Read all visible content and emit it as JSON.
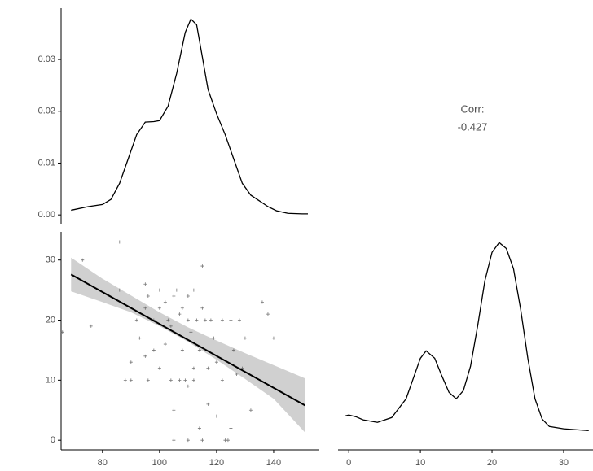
{
  "chart_data": [
    {
      "type": "line",
      "x": [
        69,
        75,
        80,
        83,
        86,
        89,
        92,
        95,
        98,
        100,
        103,
        106,
        109,
        111,
        113,
        115,
        117,
        120,
        123,
        126,
        129,
        132,
        135,
        138,
        141,
        145,
        150,
        152
      ],
      "values": [
        0.0009,
        0.0016,
        0.002,
        0.003,
        0.0061,
        0.0108,
        0.0155,
        0.0179,
        0.018,
        0.0182,
        0.021,
        0.0273,
        0.0352,
        0.0378,
        0.0367,
        0.0305,
        0.0242,
        0.0195,
        0.0155,
        0.0108,
        0.0061,
        0.0038,
        0.0027,
        0.0016,
        0.0008,
        0.0003,
        0.0002,
        0.0002
      ],
      "color": "#000000",
      "xlim": [
        65.5,
        156
      ],
      "ylim": [
        -0.0017,
        0.0399
      ],
      "yticks": [
        {
          "value": 0,
          "label": "0.00"
        },
        {
          "value": 0.01,
          "label": "0.01"
        },
        {
          "value": 0.02,
          "label": "0.02"
        },
        {
          "value": 0.03,
          "label": "0.03"
        }
      ]
    },
    {
      "type": "text",
      "annotations": [
        "Corr:",
        "-0.427"
      ]
    },
    {
      "type": "scatter",
      "x": [
        66,
        73,
        76,
        86,
        88,
        90,
        92,
        95,
        95,
        96,
        98,
        100,
        100,
        102,
        103,
        104,
        105,
        106,
        107,
        108,
        108,
        109,
        110,
        110,
        111,
        112,
        112,
        113,
        114,
        115,
        115,
        116,
        117,
        118,
        119,
        120,
        122,
        122,
        123,
        124,
        125,
        126,
        128,
        129,
        130,
        132,
        136,
        138,
        140,
        86,
        90,
        95,
        100,
        104,
        105,
        107,
        110,
        112,
        114,
        117,
        120,
        115,
        110,
        105,
        93,
        98,
        102,
        96,
        125,
        127
      ],
      "values": [
        18,
        30,
        19,
        33,
        10,
        10,
        20,
        26,
        22,
        24,
        20,
        22,
        25,
        23,
        20,
        19,
        24,
        25,
        21,
        22,
        15,
        10,
        20,
        24,
        18,
        25,
        10,
        20,
        15,
        29,
        22,
        20,
        12,
        20,
        17,
        13,
        20,
        10,
        0,
        0,
        2,
        15,
        20,
        12,
        17,
        5,
        23,
        21,
        17,
        25,
        13,
        14,
        12,
        10,
        5,
        10,
        9,
        12,
        2,
        6,
        4,
        0,
        0,
        0,
        17,
        15,
        16,
        10,
        20,
        11
      ],
      "color": "#555555",
      "regression": {
        "x": [
          69,
          151
        ],
        "values": [
          27.6,
          5.8
        ]
      },
      "band": {
        "x": [
          69,
          80,
          90,
          100,
          110,
          120,
          130,
          140,
          151
        ],
        "upper": [
          30.4,
          26.9,
          24.1,
          21.3,
          18.8,
          16.6,
          14.5,
          12.5,
          10.3
        ],
        "lower": [
          24.8,
          23.0,
          21.3,
          19.0,
          16.4,
          13.4,
          10.2,
          6.9,
          1.3
        ]
      },
      "xlim": [
        65.5,
        156
      ],
      "ylim": [
        -1.6,
        34.7
      ],
      "xticks": [
        80,
        100,
        120,
        140
      ],
      "yticks": [
        0,
        10,
        20,
        30
      ]
    },
    {
      "type": "line",
      "x": [
        -0.5,
        0,
        1,
        2,
        4,
        6,
        8,
        10,
        10.8,
        12,
        13,
        14,
        15,
        16,
        17,
        18,
        19,
        20,
        21,
        22,
        23,
        24,
        25,
        26,
        27,
        28,
        30,
        33.5
      ],
      "values": [
        0.0082,
        0.0086,
        0.0079,
        0.0067,
        0.0057,
        0.0076,
        0.0149,
        0.0307,
        0.0336,
        0.0307,
        0.0238,
        0.0174,
        0.0149,
        0.0181,
        0.0276,
        0.0434,
        0.0609,
        0.072,
        0.0758,
        0.0735,
        0.0656,
        0.0498,
        0.0307,
        0.0149,
        0.007,
        0.0041,
        0.0032,
        0.0025
      ],
      "color": "#000000",
      "xlim": [
        -1.5,
        34.1
      ],
      "ylim": [
        -0.005,
        0.08
      ],
      "xticks": [
        0,
        10,
        20,
        30
      ]
    }
  ]
}
